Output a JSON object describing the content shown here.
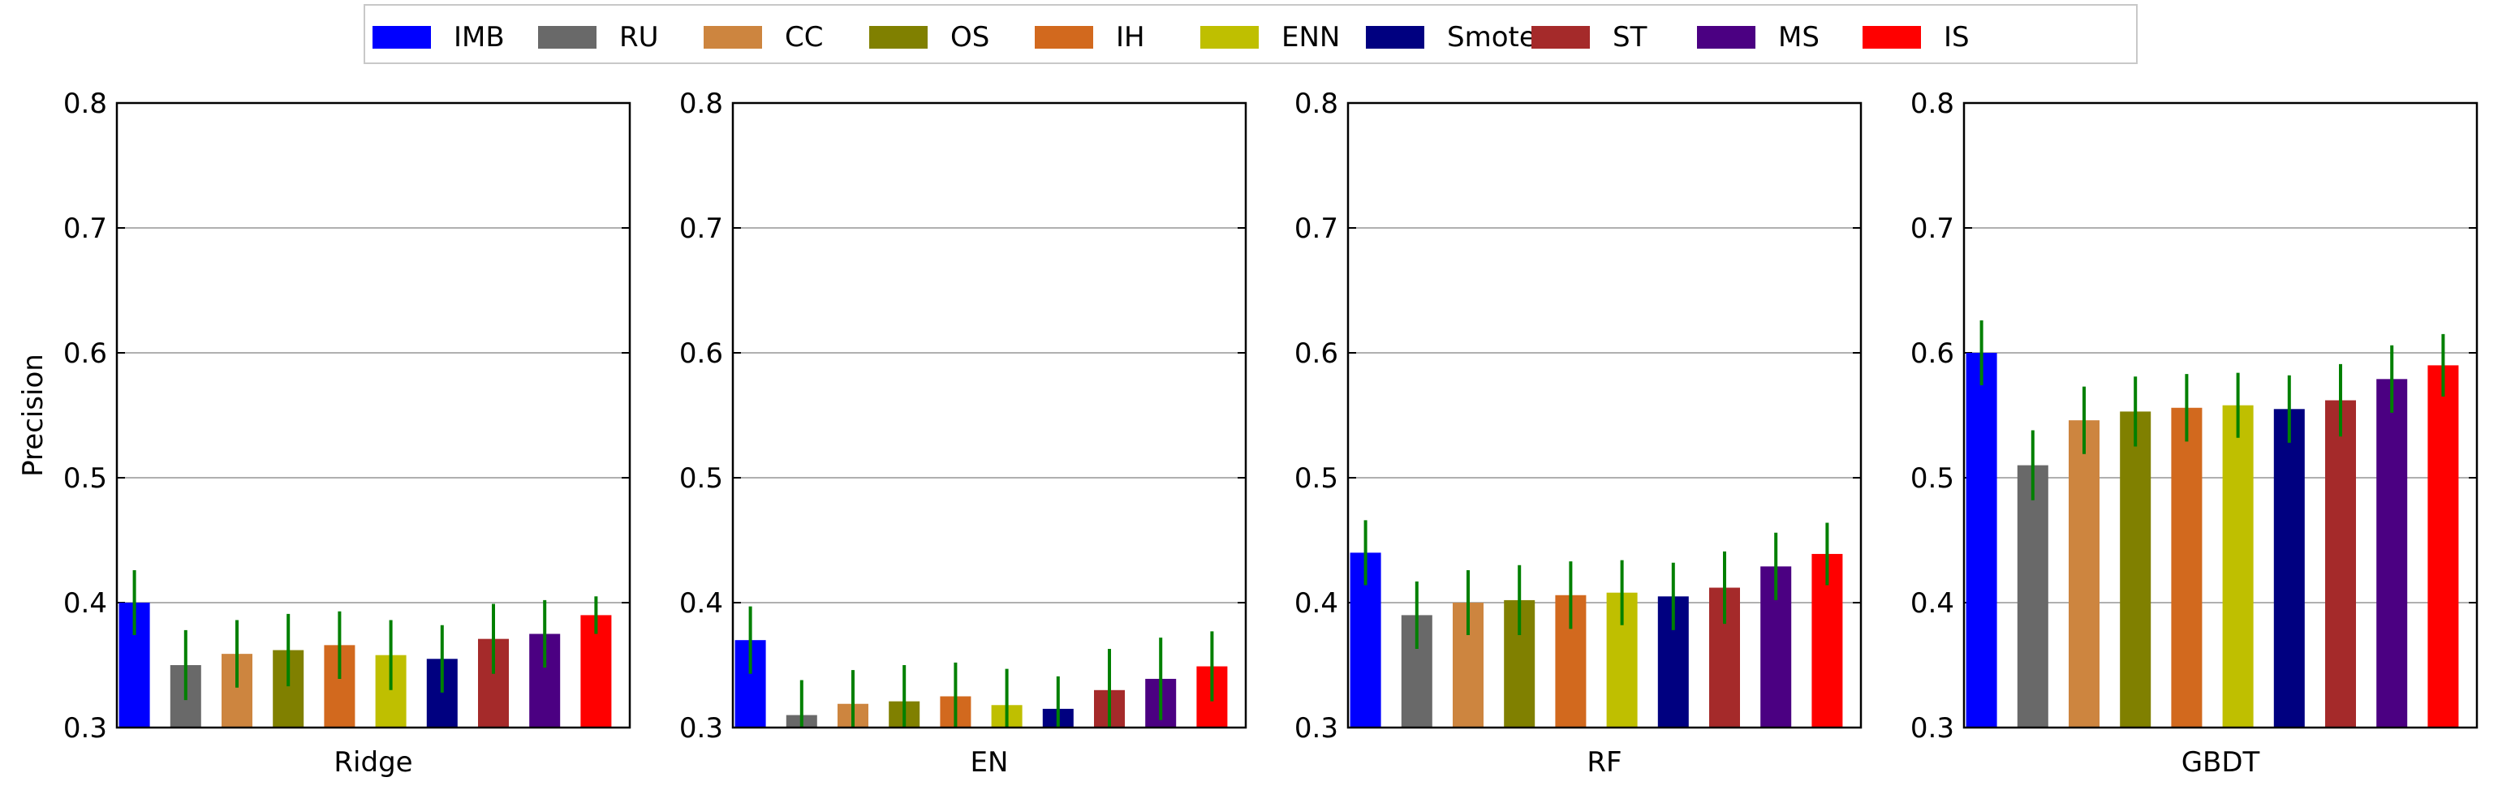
{
  "legend": {
    "position": "top-center",
    "items": [
      {
        "label": "IMB",
        "color": "#0000ff"
      },
      {
        "label": "RU",
        "color": "#696969"
      },
      {
        "label": "CC",
        "color": "#cd853f"
      },
      {
        "label": "OS",
        "color": "#808000"
      },
      {
        "label": "IH",
        "color": "#d2691e"
      },
      {
        "label": "ENN",
        "color": "#bfbf00"
      },
      {
        "label": "Smote",
        "color": "#000080"
      },
      {
        "label": "ST",
        "color": "#a52a2a"
      },
      {
        "label": "MS",
        "color": "#4b0082"
      },
      {
        "label": "IS",
        "color": "#ff0000"
      }
    ]
  },
  "error_bar_color": "#008000",
  "grid": true,
  "chart_data": [
    {
      "type": "bar",
      "xlabel": "Ridge",
      "ylabel": "Precision",
      "ylim": [
        0.3,
        0.8
      ],
      "yticks": [
        "0.3",
        "0.4",
        "0.5",
        "0.6",
        "0.7",
        "0.8"
      ],
      "categories": [
        "IMB",
        "RU",
        "CC",
        "OS",
        "IH",
        "ENN",
        "Smote",
        "ST",
        "MS",
        "IS"
      ],
      "values": [
        0.4,
        0.35,
        0.359,
        0.362,
        0.366,
        0.358,
        0.355,
        0.371,
        0.375,
        0.39
      ],
      "errors": [
        0.026,
        0.028,
        0.027,
        0.029,
        0.027,
        0.028,
        0.027,
        0.028,
        0.027,
        0.015
      ]
    },
    {
      "type": "bar",
      "xlabel": "EN",
      "ylabel": "",
      "ylim": [
        0.3,
        0.8
      ],
      "yticks": [
        "0.3",
        "0.4",
        "0.5",
        "0.6",
        "0.7",
        "0.8"
      ],
      "categories": [
        "IMB",
        "RU",
        "CC",
        "OS",
        "IH",
        "ENN",
        "Smote",
        "ST",
        "MS",
        "IS"
      ],
      "values": [
        0.37,
        0.31,
        0.319,
        0.321,
        0.325,
        0.318,
        0.315,
        0.33,
        0.339,
        0.349
      ],
      "errors": [
        0.027,
        0.028,
        0.027,
        0.029,
        0.027,
        0.029,
        0.026,
        0.033,
        0.033,
        0.028
      ]
    },
    {
      "type": "bar",
      "xlabel": "RF",
      "ylabel": "",
      "ylim": [
        0.3,
        0.8
      ],
      "yticks": [
        "0.3",
        "0.4",
        "0.5",
        "0.6",
        "0.7",
        "0.8"
      ],
      "categories": [
        "IMB",
        "RU",
        "CC",
        "OS",
        "IH",
        "ENN",
        "Smote",
        "ST",
        "MS",
        "IS"
      ],
      "values": [
        0.44,
        0.39,
        0.4,
        0.402,
        0.406,
        0.408,
        0.405,
        0.412,
        0.429,
        0.439
      ],
      "errors": [
        0.026,
        0.027,
        0.026,
        0.028,
        0.027,
        0.026,
        0.027,
        0.029,
        0.027,
        0.025
      ]
    },
    {
      "type": "bar",
      "xlabel": "GBDT",
      "ylabel": "",
      "ylim": [
        0.3,
        0.8
      ],
      "yticks": [
        "0.3",
        "0.4",
        "0.5",
        "0.6",
        "0.7",
        "0.8"
      ],
      "categories": [
        "IMB",
        "RU",
        "CC",
        "OS",
        "IH",
        "ENN",
        "Smote",
        "ST",
        "MS",
        "IS"
      ],
      "values": [
        0.6,
        0.51,
        0.546,
        0.553,
        0.556,
        0.558,
        0.555,
        0.562,
        0.579,
        0.59
      ],
      "errors": [
        0.026,
        0.028,
        0.027,
        0.028,
        0.027,
        0.026,
        0.027,
        0.029,
        0.027,
        0.025
      ]
    }
  ]
}
